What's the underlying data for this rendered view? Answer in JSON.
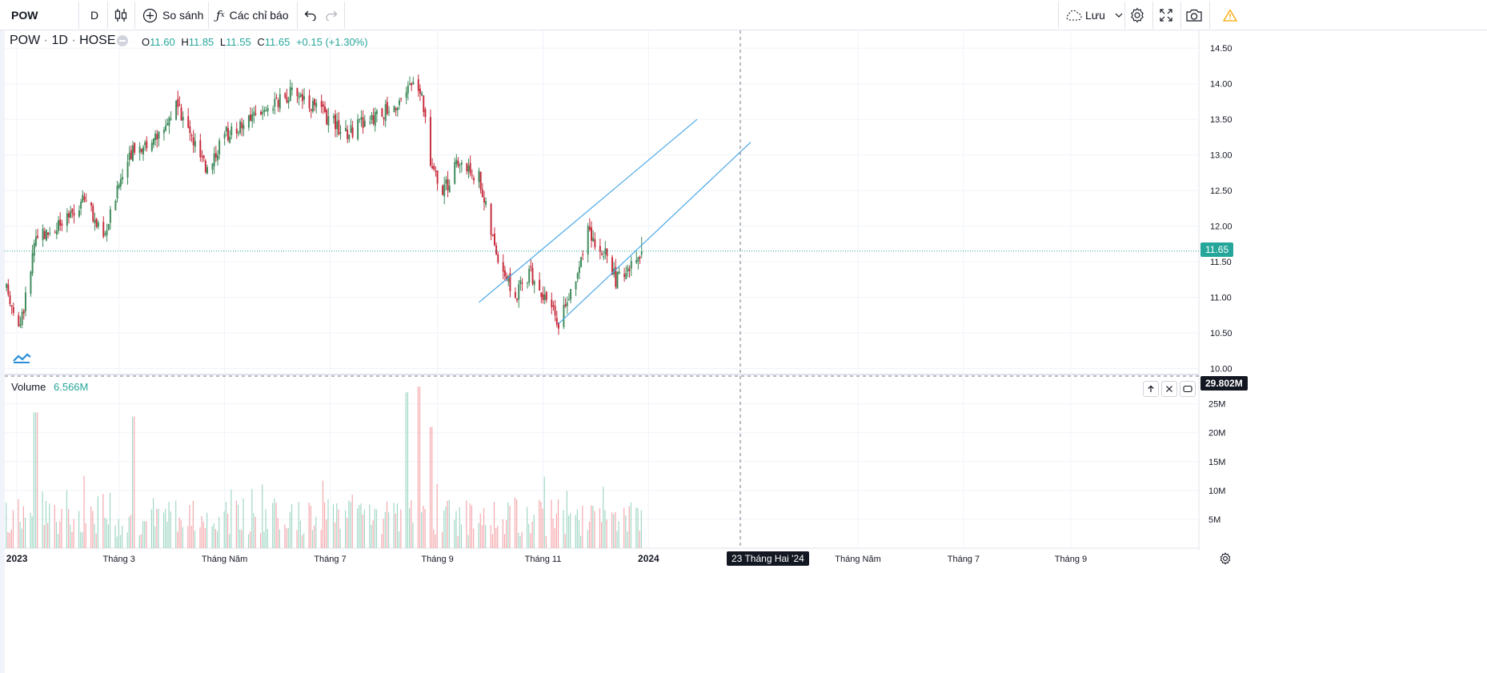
{
  "toolbar": {
    "symbol": "POW",
    "interval": "D",
    "compare_label": "So sánh",
    "indicators_label": "Các chỉ báo",
    "save_label": "Lưu",
    "icons": [
      "candlestick-icon",
      "plus-circle-icon",
      "function-icon",
      "undo-icon",
      "redo-icon",
      "cloud-icon",
      "chevron-down-icon",
      "gear-icon",
      "fullscreen-icon",
      "camera-icon",
      "warning-icon"
    ]
  },
  "legend": {
    "symbol": "POW",
    "interval": "1D",
    "exchange": "HOSE",
    "sep": "·",
    "o_label": "O",
    "o": "11.60",
    "h_label": "H",
    "h": "11.85",
    "l_label": "L",
    "l": "11.55",
    "c_label": "C",
    "c": "11.65",
    "change": "+0.15 (+1.30%)"
  },
  "volume_legend": {
    "label": "Volume",
    "value": "6.566M"
  },
  "price_tags": {
    "last_price": "11.65",
    "crosshair_volume": "29.802M",
    "crosshair_date": "23 Tháng Hai '24"
  },
  "colors": {
    "up": "#26a69a",
    "down": "#ef5350",
    "up_body": "#3d8a5a",
    "down_body": "#c62a3a",
    "vol_up": "#9fd6c4",
    "vol_down": "#f4a6ab",
    "channel": "#4aa8e8",
    "last_price": "#26a69a"
  },
  "chart_data": [
    {
      "type": "candlestick",
      "title": "",
      "price_axis": {
        "ticks": [
          "14.50",
          "14.00",
          "13.50",
          "13.00",
          "12.50",
          "12.00",
          "11.50",
          "11.00",
          "10.50",
          "10.00"
        ],
        "range": [
          9.95,
          14.75
        ]
      },
      "time_axis": {
        "ticks": [
          "2023",
          "Tháng 3",
          "Tháng Năm",
          "Tháng 7",
          "Tháng 9",
          "Tháng 11",
          "2024",
          "Tháng Năm",
          "Tháng 7",
          "Tháng 9"
        ]
      },
      "path": [
        [
          "2022-12-26",
          11.1
        ],
        [
          "2023-01-03",
          10.6
        ],
        [
          "2023-01-12",
          11.8
        ],
        [
          "2023-01-31",
          12.1
        ],
        [
          "2023-02-09",
          12.4
        ],
        [
          "2023-02-20",
          11.8
        ],
        [
          "2023-03-01",
          12.6
        ],
        [
          "2023-03-10",
          13.1
        ],
        [
          "2023-03-22",
          13.2
        ],
        [
          "2023-04-03",
          13.7
        ],
        [
          "2023-04-11",
          13.3
        ],
        [
          "2023-04-20",
          12.8
        ],
        [
          "2023-05-02",
          13.3
        ],
        [
          "2023-05-15",
          13.5
        ],
        [
          "2023-05-26",
          13.6
        ],
        [
          "2023-06-07",
          13.85
        ],
        [
          "2023-06-12",
          13.9
        ],
        [
          "2023-06-26",
          13.6
        ],
        [
          "2023-07-10",
          13.3
        ],
        [
          "2023-07-24",
          13.5
        ],
        [
          "2023-08-07",
          13.7
        ],
        [
          "2023-08-16",
          13.95
        ],
        [
          "2023-08-23",
          13.85
        ],
        [
          "2023-08-28",
          12.9
        ],
        [
          "2023-09-05",
          12.5
        ],
        [
          "2023-09-13",
          12.9
        ],
        [
          "2023-09-25",
          12.7
        ],
        [
          "2023-10-04",
          11.7
        ],
        [
          "2023-10-16",
          11.0
        ],
        [
          "2023-10-24",
          11.35
        ],
        [
          "2023-11-03",
          11.0
        ],
        [
          "2023-11-10",
          10.65
        ],
        [
          "2023-11-20",
          11.3
        ],
        [
          "2023-11-27",
          11.9
        ],
        [
          "2023-12-05",
          11.7
        ],
        [
          "2023-12-13",
          11.25
        ],
        [
          "2023-12-21",
          11.4
        ],
        [
          "2023-12-28",
          11.65
        ]
      ],
      "last_candle": {
        "open": 11.6,
        "high": 11.85,
        "low": 11.55,
        "close": 11.65
      },
      "annotations": [
        {
          "type": "trend_line",
          "from": [
            "2023-09-25",
            10.93
          ],
          "to": [
            "2024-01-29",
            13.5
          ]
        },
        {
          "type": "trend_line",
          "from": [
            "2023-11-10",
            10.63
          ],
          "to": [
            "2024-02-29",
            13.18
          ]
        }
      ],
      "crosshair": {
        "date": "2024-02-23"
      }
    },
    {
      "type": "bar",
      "title": "Volume",
      "axis": {
        "ticks": [
          "25M",
          "20M",
          "15M",
          "10M",
          "5M"
        ],
        "range": [
          0,
          29.802
        ],
        "unit": "M"
      },
      "peaks": [
        {
          "date": "2023-01-12",
          "value": 23.5
        },
        {
          "date": "2023-03-10",
          "value": 22.8
        },
        {
          "date": "2023-08-14",
          "value": 27.0
        },
        {
          "date": "2023-08-21",
          "value": 28.0
        },
        {
          "date": "2023-08-28",
          "value": 21.0
        }
      ],
      "last_value_m": 6.566
    }
  ]
}
